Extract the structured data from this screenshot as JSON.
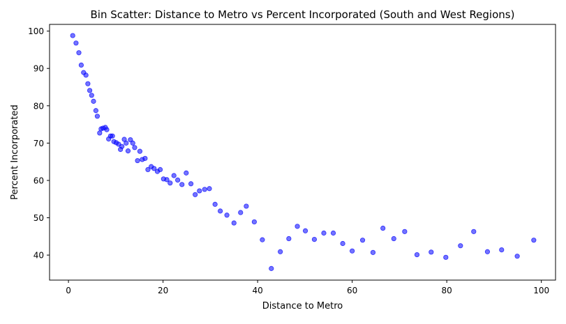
{
  "chart_data": {
    "type": "scatter",
    "title": "Bin Scatter: Distance to Metro vs Percent Incorporated (South and West Regions)",
    "xlabel": "Distance to Metro",
    "ylabel": "Percent Incorporated",
    "xlim": [
      -4,
      103
    ],
    "ylim": [
      33.3,
      101.8
    ],
    "xticks": [
      0,
      20,
      40,
      60,
      80,
      100
    ],
    "yticks": [
      40,
      50,
      60,
      70,
      80,
      90,
      100
    ],
    "grid": false,
    "marker_color": "#0000ff",
    "marker_opacity": 0.55,
    "series": [
      {
        "points": [
          [
            0.9,
            98.8
          ],
          [
            1.6,
            96.8
          ],
          [
            2.2,
            94.2
          ],
          [
            2.7,
            90.9
          ],
          [
            3.2,
            88.9
          ],
          [
            3.7,
            88.2
          ],
          [
            4.1,
            85.9
          ],
          [
            4.5,
            84.1
          ],
          [
            4.9,
            82.8
          ],
          [
            5.3,
            81.2
          ],
          [
            5.8,
            78.7
          ],
          [
            6.1,
            77.2
          ],
          [
            6.6,
            72.7
          ],
          [
            6.9,
            73.8
          ],
          [
            7.3,
            74.0
          ],
          [
            7.8,
            74.2
          ],
          [
            8.1,
            73.6
          ],
          [
            8.5,
            71.1
          ],
          [
            8.9,
            71.9
          ],
          [
            9.3,
            71.9
          ],
          [
            9.6,
            70.4
          ],
          [
            10.1,
            70.1
          ],
          [
            10.6,
            69.7
          ],
          [
            11.0,
            68.3
          ],
          [
            11.3,
            69.1
          ],
          [
            11.8,
            71.0
          ],
          [
            12.2,
            70.0
          ],
          [
            12.6,
            67.9
          ],
          [
            13.1,
            70.9
          ],
          [
            13.6,
            70.0
          ],
          [
            14.0,
            68.8
          ],
          [
            14.6,
            65.3
          ],
          [
            15.1,
            67.8
          ],
          [
            15.6,
            65.6
          ],
          [
            16.2,
            65.9
          ],
          [
            16.8,
            62.9
          ],
          [
            17.5,
            63.7
          ],
          [
            18.1,
            63.2
          ],
          [
            18.8,
            62.4
          ],
          [
            19.4,
            62.9
          ],
          [
            20.1,
            60.4
          ],
          [
            20.8,
            60.2
          ],
          [
            21.5,
            59.3
          ],
          [
            22.3,
            61.3
          ],
          [
            23.1,
            60.1
          ],
          [
            24.0,
            58.9
          ],
          [
            24.9,
            62.0
          ],
          [
            25.9,
            59.1
          ],
          [
            26.8,
            56.2
          ],
          [
            27.7,
            57.2
          ],
          [
            28.8,
            57.6
          ],
          [
            29.8,
            57.8
          ],
          [
            31.0,
            53.6
          ],
          [
            32.1,
            51.8
          ],
          [
            33.5,
            50.7
          ],
          [
            35.0,
            48.6
          ],
          [
            36.4,
            51.4
          ],
          [
            37.6,
            53.1
          ],
          [
            39.3,
            48.9
          ],
          [
            41.0,
            44.1
          ],
          [
            42.9,
            36.4
          ],
          [
            44.8,
            40.9
          ],
          [
            46.6,
            44.4
          ],
          [
            48.4,
            47.7
          ],
          [
            50.1,
            46.5
          ],
          [
            52.0,
            44.2
          ],
          [
            54.0,
            45.9
          ],
          [
            56.0,
            45.9
          ],
          [
            58.0,
            43.1
          ],
          [
            60.0,
            41.1
          ],
          [
            62.2,
            44.0
          ],
          [
            64.4,
            40.7
          ],
          [
            66.5,
            47.2
          ],
          [
            68.8,
            44.4
          ],
          [
            71.1,
            46.3
          ],
          [
            73.7,
            40.1
          ],
          [
            76.7,
            40.8
          ],
          [
            79.8,
            39.4
          ],
          [
            82.9,
            42.5
          ],
          [
            85.7,
            46.3
          ],
          [
            88.6,
            40.9
          ],
          [
            91.6,
            41.4
          ],
          [
            94.9,
            39.7
          ],
          [
            98.4,
            44.0
          ]
        ]
      }
    ]
  }
}
